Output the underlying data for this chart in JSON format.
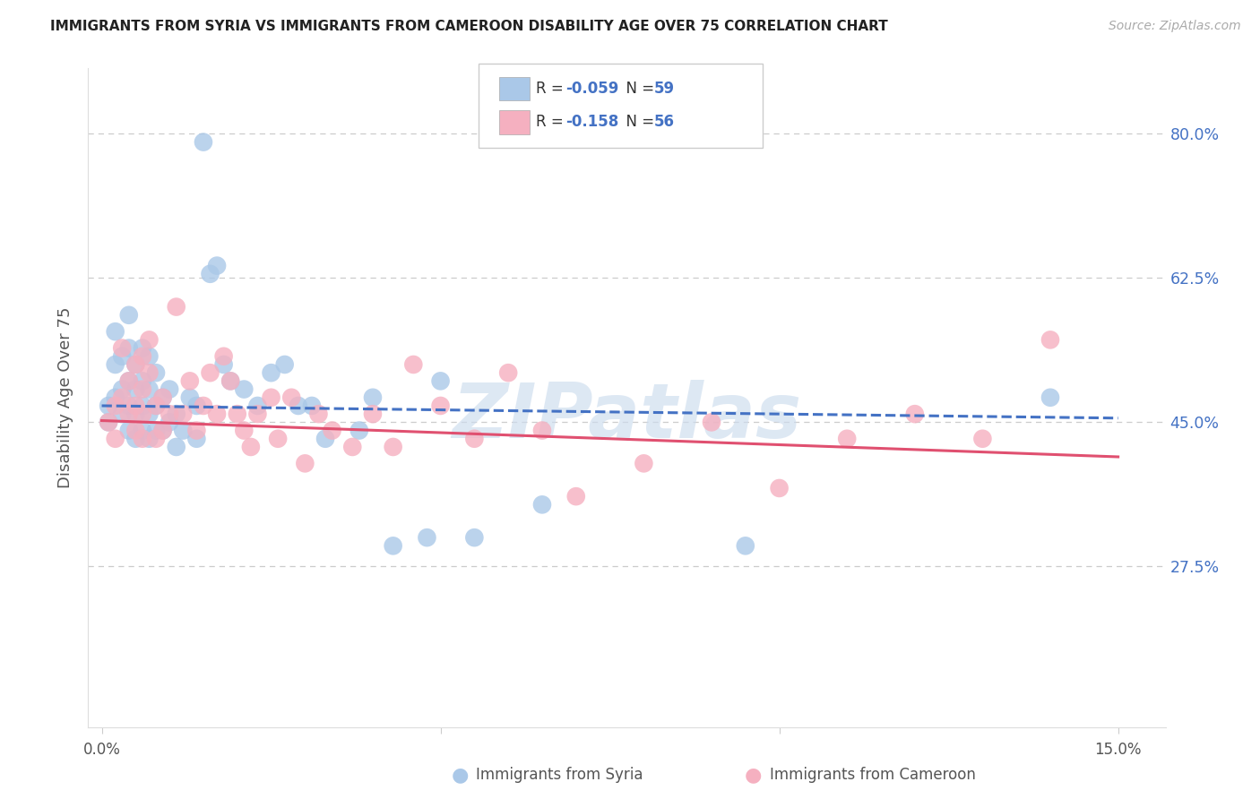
{
  "title": "IMMIGRANTS FROM SYRIA VS IMMIGRANTS FROM CAMEROON DISABILITY AGE OVER 75 CORRELATION CHART",
  "source": "Source: ZipAtlas.com",
  "ylabel": "Disability Age Over 75",
  "xlim": [
    -0.002,
    0.157
  ],
  "ylim": [
    0.08,
    0.88
  ],
  "ytick_vals": [
    0.275,
    0.45,
    0.625,
    0.8
  ],
  "ytick_labels": [
    "27.5%",
    "45.0%",
    "62.5%",
    "80.0%"
  ],
  "background_color": "#ffffff",
  "grid_color": "#cccccc",
  "title_color": "#222222",
  "axis_label_color": "#555555",
  "right_label_color": "#4472c4",
  "watermark": "ZIPatlas",
  "watermark_color": "#ccdcee",
  "syria_scatter_color": "#aac8e8",
  "cameroon_scatter_color": "#f5b0c0",
  "syria_line_color": "#4472c4",
  "cameroon_line_color": "#e05070",
  "syria_R": "-0.059",
  "syria_N": "59",
  "cameroon_R": "-0.158",
  "cameroon_N": "56",
  "syria_trend_y0": 0.47,
  "syria_trend_y1": 0.455,
  "cameroon_trend_y0": 0.452,
  "cameroon_trend_y1": 0.408,
  "syria_x": [
    0.001,
    0.001,
    0.002,
    0.002,
    0.002,
    0.003,
    0.003,
    0.003,
    0.004,
    0.004,
    0.004,
    0.004,
    0.004,
    0.005,
    0.005,
    0.005,
    0.005,
    0.006,
    0.006,
    0.006,
    0.006,
    0.007,
    0.007,
    0.007,
    0.007,
    0.008,
    0.008,
    0.008,
    0.009,
    0.009,
    0.01,
    0.01,
    0.011,
    0.011,
    0.012,
    0.013,
    0.014,
    0.014,
    0.015,
    0.016,
    0.017,
    0.018,
    0.019,
    0.021,
    0.023,
    0.025,
    0.027,
    0.029,
    0.031,
    0.033,
    0.038,
    0.04,
    0.043,
    0.048,
    0.05,
    0.055,
    0.065,
    0.095,
    0.14
  ],
  "syria_y": [
    0.47,
    0.45,
    0.48,
    0.52,
    0.56,
    0.46,
    0.49,
    0.53,
    0.44,
    0.47,
    0.5,
    0.54,
    0.58,
    0.43,
    0.46,
    0.49,
    0.52,
    0.44,
    0.47,
    0.5,
    0.54,
    0.43,
    0.46,
    0.49,
    0.53,
    0.44,
    0.47,
    0.51,
    0.44,
    0.48,
    0.45,
    0.49,
    0.42,
    0.46,
    0.44,
    0.48,
    0.43,
    0.47,
    0.79,
    0.63,
    0.64,
    0.52,
    0.5,
    0.49,
    0.47,
    0.51,
    0.52,
    0.47,
    0.47,
    0.43,
    0.44,
    0.48,
    0.3,
    0.31,
    0.5,
    0.31,
    0.35,
    0.3,
    0.48
  ],
  "cameroon_x": [
    0.001,
    0.002,
    0.002,
    0.003,
    0.003,
    0.004,
    0.004,
    0.005,
    0.005,
    0.005,
    0.006,
    0.006,
    0.006,
    0.006,
    0.007,
    0.007,
    0.008,
    0.008,
    0.009,
    0.009,
    0.01,
    0.011,
    0.012,
    0.013,
    0.014,
    0.015,
    0.016,
    0.017,
    0.018,
    0.019,
    0.02,
    0.021,
    0.022,
    0.023,
    0.025,
    0.026,
    0.028,
    0.03,
    0.032,
    0.034,
    0.037,
    0.04,
    0.043,
    0.046,
    0.05,
    0.055,
    0.06,
    0.065,
    0.07,
    0.08,
    0.09,
    0.1,
    0.11,
    0.12,
    0.13,
    0.14
  ],
  "cameroon_y": [
    0.45,
    0.43,
    0.47,
    0.54,
    0.48,
    0.46,
    0.5,
    0.44,
    0.47,
    0.52,
    0.43,
    0.46,
    0.49,
    0.53,
    0.55,
    0.51,
    0.47,
    0.43,
    0.44,
    0.48,
    0.46,
    0.59,
    0.46,
    0.5,
    0.44,
    0.47,
    0.51,
    0.46,
    0.53,
    0.5,
    0.46,
    0.44,
    0.42,
    0.46,
    0.48,
    0.43,
    0.48,
    0.4,
    0.46,
    0.44,
    0.42,
    0.46,
    0.42,
    0.52,
    0.47,
    0.43,
    0.51,
    0.44,
    0.36,
    0.4,
    0.45,
    0.37,
    0.43,
    0.46,
    0.43,
    0.55
  ]
}
